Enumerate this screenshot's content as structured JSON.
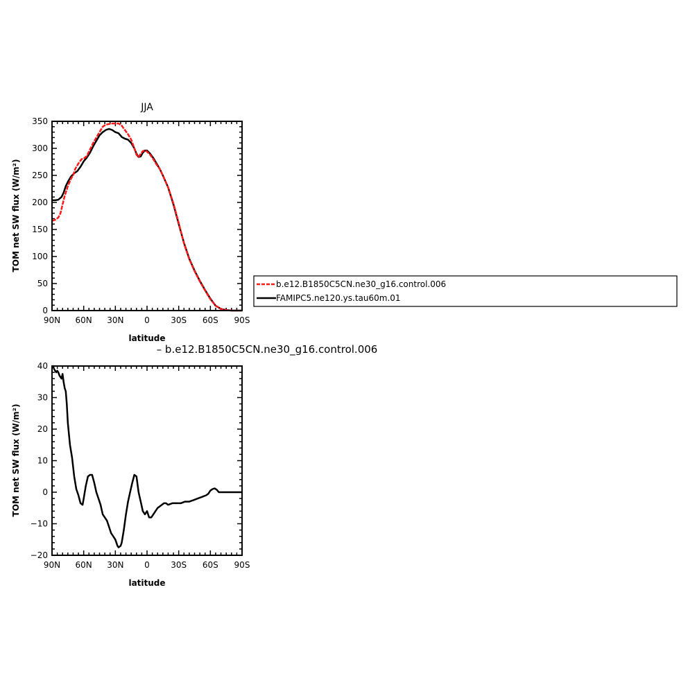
{
  "chart_data": [
    {
      "type": "line",
      "title": "JJA",
      "xlabel": "latitude",
      "ylabel": "TOM net SW flux (W/m²)",
      "xlim": [
        90,
        -90
      ],
      "ylim": [
        0,
        350
      ],
      "xticks": [
        {
          "v": 90,
          "label": "90N"
        },
        {
          "v": 60,
          "label": "60N"
        },
        {
          "v": 30,
          "label": "30N"
        },
        {
          "v": 0,
          "label": "0"
        },
        {
          "v": -30,
          "label": "30S"
        },
        {
          "v": -60,
          "label": "60S"
        },
        {
          "v": -90,
          "label": "90S"
        }
      ],
      "yticks": [
        {
          "v": 0,
          "label": "0"
        },
        {
          "v": 50,
          "label": "50"
        },
        {
          "v": 100,
          "label": "100"
        },
        {
          "v": 150,
          "label": "150"
        },
        {
          "v": 200,
          "label": "200"
        },
        {
          "v": 250,
          "label": "250"
        },
        {
          "v": 300,
          "label": "300"
        },
        {
          "v": 350,
          "label": "350"
        }
      ],
      "legend": {
        "placement": "right",
        "entries": [
          "b.e12.B1850C5CN.ne30_g16.control.006",
          "FAMIPC5.ne120.ys.tau60m.01"
        ]
      },
      "series": [
        {
          "name": "b.e12.B1850C5CN.ne30_g16.control.006",
          "color": "#ff1a1a",
          "dash": true,
          "x": [
            90,
            87,
            84,
            82,
            80,
            78,
            75,
            72,
            70,
            68,
            65,
            62,
            60,
            57,
            54,
            51,
            48,
            45,
            42,
            39,
            36,
            33,
            30,
            27,
            24,
            21,
            18,
            15,
            12,
            10,
            8,
            6,
            4,
            2,
            0,
            -3,
            -6,
            -9,
            -12,
            -15,
            -20,
            -25,
            -30,
            -35,
            -40,
            -45,
            -50,
            -55,
            -60,
            -65,
            -70,
            -72,
            -75,
            -78,
            -80,
            -85,
            -90
          ],
          "y": [
            166,
            168,
            172,
            180,
            196,
            212,
            230,
            244,
            250,
            262,
            272,
            280,
            281,
            286,
            298,
            310,
            320,
            330,
            340,
            344,
            345,
            346,
            346,
            346,
            342,
            334,
            326,
            316,
            300,
            288,
            284,
            290,
            295,
            296,
            294,
            288,
            280,
            270,
            262,
            250,
            228,
            198,
            162,
            124,
            95,
            73,
            54,
            37,
            21,
            9,
            3,
            2,
            1,
            0.5,
            0,
            0,
            0
          ]
        },
        {
          "name": "FAMIPC5.ne120.ys.tau60m.01",
          "color": "#000000",
          "dash": false,
          "x": [
            90,
            87,
            84,
            81,
            79,
            77,
            75,
            72,
            69,
            66,
            63,
            60,
            57,
            54,
            51,
            48,
            45,
            42,
            39,
            36,
            33,
            30,
            27,
            24,
            21,
            18,
            15,
            12,
            10,
            8,
            6,
            4,
            2,
            0,
            -3,
            -6,
            -9,
            -12,
            -15,
            -20,
            -25,
            -30,
            -35,
            -40,
            -45,
            -50,
            -55,
            -60,
            -65,
            -70,
            -72,
            -75,
            -78,
            -80,
            -85,
            -90
          ],
          "y": [
            204,
            204,
            205,
            210,
            218,
            230,
            238,
            248,
            254,
            258,
            266,
            276,
            283,
            292,
            304,
            314,
            324,
            330,
            334,
            336,
            334,
            330,
            328,
            321,
            318,
            316,
            310,
            300,
            290,
            284,
            285,
            292,
            296,
            296,
            290,
            282,
            272,
            262,
            250,
            228,
            196,
            160,
            125,
            96,
            74,
            55,
            38,
            22,
            9,
            3,
            2,
            1,
            0.5,
            0,
            0,
            0
          ]
        }
      ]
    },
    {
      "type": "line",
      "title": "– b.e12.B1850C5CN.ne30_g16.control.006",
      "xlabel": "latitude",
      "ylabel": "TOM net SW flux (W/m²)",
      "xlim": [
        90,
        -90
      ],
      "ylim": [
        -20,
        40
      ],
      "xticks": [
        {
          "v": 90,
          "label": "90N"
        },
        {
          "v": 60,
          "label": "60N"
        },
        {
          "v": 30,
          "label": "30N"
        },
        {
          "v": 0,
          "label": "0"
        },
        {
          "v": -30,
          "label": "30S"
        },
        {
          "v": -60,
          "label": "60S"
        },
        {
          "v": -90,
          "label": "90S"
        }
      ],
      "yticks": [
        {
          "v": -20,
          "label": "−20"
        },
        {
          "v": -10,
          "label": "−10"
        },
        {
          "v": 0,
          "label": "0"
        },
        {
          "v": 10,
          "label": "10"
        },
        {
          "v": 20,
          "label": "20"
        },
        {
          "v": 30,
          "label": "30"
        },
        {
          "v": 40,
          "label": "40"
        }
      ],
      "series": [
        {
          "color": "#000000",
          "dash": false,
          "x": [
            90,
            89,
            88,
            86,
            85,
            84,
            83,
            81,
            80,
            79,
            78,
            77,
            76,
            75,
            73,
            71,
            69,
            67,
            65,
            63,
            61,
            60,
            58,
            56,
            54,
            52,
            50,
            48,
            46,
            44,
            42,
            40,
            38,
            36,
            34,
            32,
            30,
            28,
            27,
            25,
            24,
            22,
            20,
            18,
            16,
            14,
            12,
            10,
            8,
            6,
            4,
            2,
            1,
            0,
            -1,
            -2,
            -4,
            -6,
            -8,
            -10,
            -12,
            -14,
            -16,
            -18,
            -20,
            -24,
            -28,
            -32,
            -36,
            -40,
            -44,
            -48,
            -52,
            -56,
            -58,
            -60,
            -62,
            -64,
            -66,
            -68,
            -70,
            -75,
            -80,
            -85,
            -90
          ],
          "y": [
            39.5,
            40,
            39,
            38,
            38.5,
            38,
            37,
            36,
            37.5,
            35,
            33,
            32,
            28,
            22,
            15,
            11,
            5,
            1,
            -1,
            -3.5,
            -4,
            -2,
            2,
            5,
            5.5,
            5.5,
            3,
            0,
            -2,
            -4,
            -7,
            -8,
            -9,
            -11,
            -13,
            -14,
            -15,
            -17,
            -17.5,
            -17,
            -16,
            -12,
            -7,
            -3,
            0,
            3,
            5.5,
            5,
            0,
            -3,
            -6,
            -7,
            -6.5,
            -6,
            -7,
            -8,
            -8,
            -7,
            -6,
            -5,
            -4.5,
            -4,
            -3.5,
            -3.5,
            -4,
            -3.5,
            -3.5,
            -3.5,
            -3,
            -3,
            -2.5,
            -2,
            -1.5,
            -1,
            -0.5,
            0.5,
            1,
            1.2,
            0.8,
            0,
            0,
            0,
            0,
            0,
            0
          ]
        }
      ]
    }
  ]
}
